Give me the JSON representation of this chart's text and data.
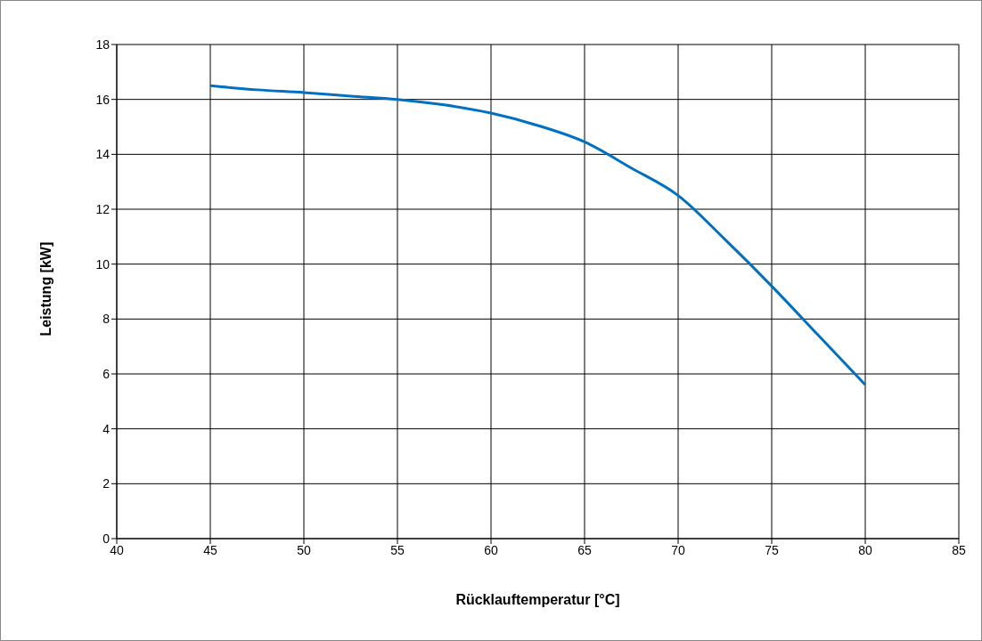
{
  "chart_data": {
    "type": "line",
    "xlabel": "Rücklauftemperatur [°C]",
    "ylabel": "Leistung [kW]",
    "x": [
      45,
      47.5,
      50,
      52.5,
      55,
      57.5,
      60,
      62.5,
      65,
      67.5,
      70,
      72.5,
      75,
      77.5,
      80
    ],
    "series": [
      {
        "color": "#0070c0",
        "values": [
          16.5,
          16.35,
          16.25,
          16.12,
          16.0,
          15.8,
          15.5,
          15.05,
          14.45,
          13.5,
          12.5,
          10.9,
          9.2,
          7.4,
          5.6
        ]
      }
    ],
    "xlim": [
      40,
      85
    ],
    "xticks": [
      40,
      45,
      50,
      55,
      60,
      65,
      70,
      75,
      80,
      85
    ],
    "ylim": [
      0,
      18
    ],
    "yticks": [
      0,
      2,
      4,
      6,
      8,
      10,
      12,
      14,
      16,
      18
    ],
    "grid": true,
    "marker": "none",
    "line_style": "solid"
  }
}
